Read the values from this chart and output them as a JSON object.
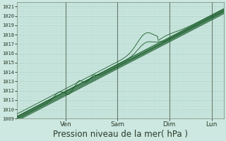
{
  "bg_color": "#cce8e0",
  "plot_bg_color": "#cce8e0",
  "grid_major_color": "#aacfc5",
  "grid_minor_color": "#aacfc5",
  "line_color": "#1a5c2a",
  "ylim": [
    1009,
    1021.5
  ],
  "xlim": [
    0,
    1
  ],
  "yticks": [
    1009,
    1010,
    1011,
    1012,
    1013,
    1014,
    1015,
    1016,
    1017,
    1018,
    1019,
    1020,
    1021
  ],
  "xlabel": "Pression niveau de la mer( hPa )",
  "xlabel_fontsize": 8.5,
  "day_labels": [
    "Ven",
    "Sam",
    "Dim",
    "Lun"
  ],
  "day_positions": [
    0.235,
    0.485,
    0.735,
    0.94
  ],
  "vline_color": "#556655",
  "tick_label_color": "#2a3a2a",
  "figsize": [
    3.2,
    2.0
  ],
  "dpi": 100
}
